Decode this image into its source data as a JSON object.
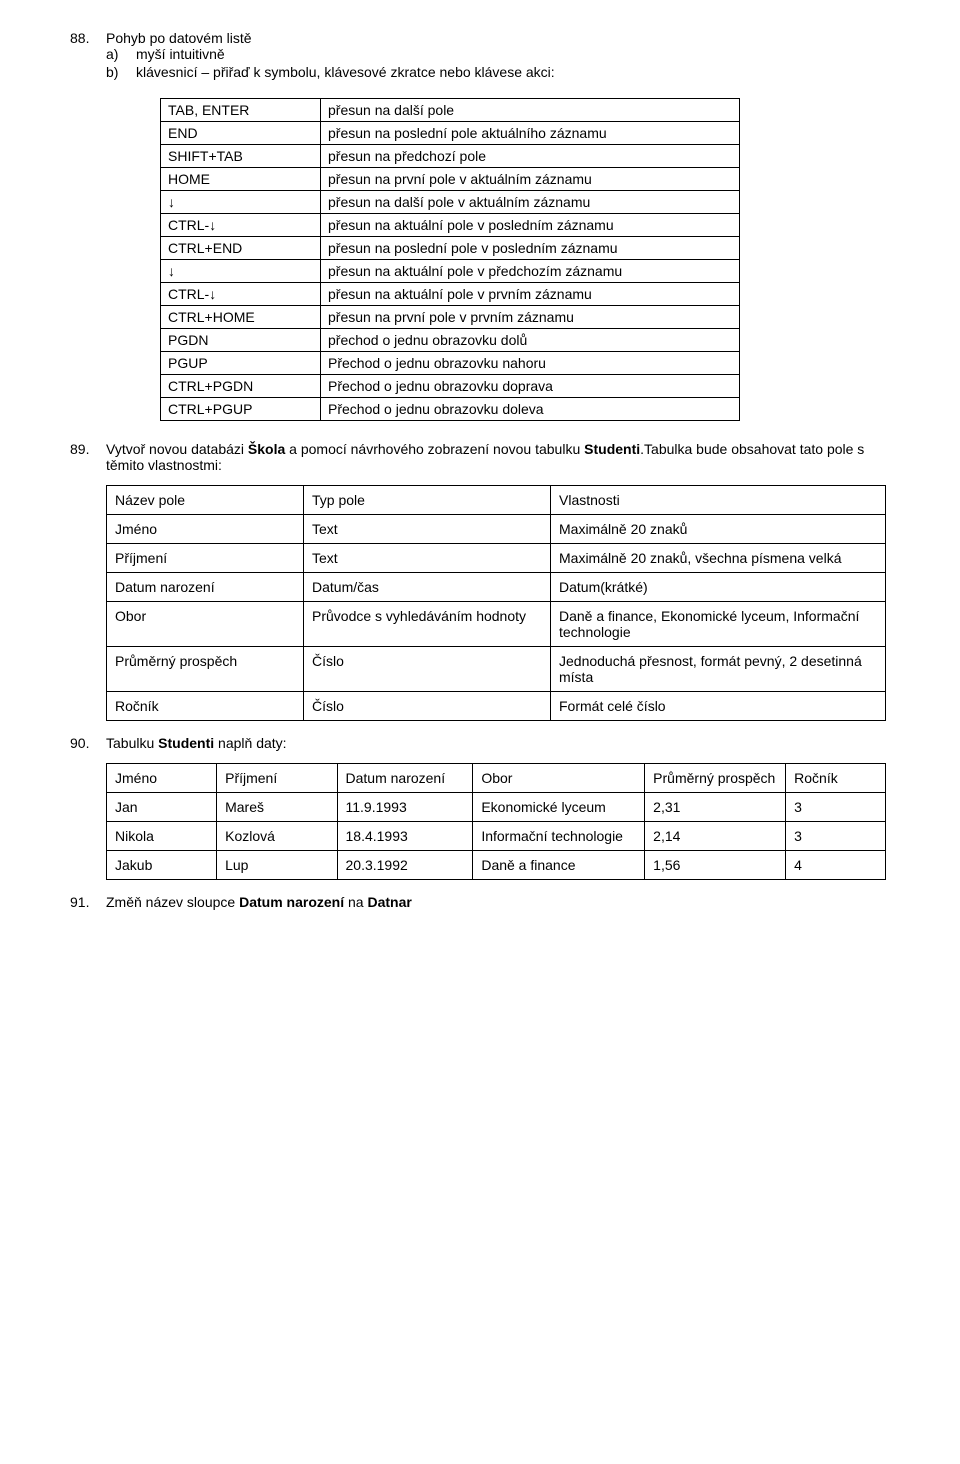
{
  "item88": {
    "num": "88.",
    "title": "Pohyb po datovém listě",
    "sub_a_letter": "a)",
    "sub_a_text": "myší intuitivně",
    "sub_b_letter": "b)",
    "sub_b_text": "klávesnicí – přiřaď k symbolu, klávesové zkratce nebo klávese akci:"
  },
  "shortcuts": [
    {
      "key": "TAB, ENTER",
      "desc": "přesun na další pole"
    },
    {
      "key": "END",
      "desc": "přesun na poslední pole aktuálního záznamu"
    },
    {
      "key": "SHIFT+TAB",
      "desc": "přesun na předchozí pole"
    },
    {
      "key": "HOME",
      "desc": "přesun na první pole v aktuálním záznamu"
    },
    {
      "key": "↓",
      "desc": "přesun na další pole v aktuálním záznamu"
    },
    {
      "key": "CTRL-↓",
      "desc": "přesun na aktuální pole v posledním záznamu"
    },
    {
      "key": "CTRL+END",
      "desc": "přesun na poslední pole v posledním záznamu"
    },
    {
      "key": "↓",
      "desc": "přesun na aktuální pole v předchozím záznamu"
    },
    {
      "key": "CTRL-↓",
      "desc": "přesun na aktuální pole v prvním záznamu"
    },
    {
      "key": "CTRL+HOME",
      "desc": "přesun na první pole v prvním záznamu"
    },
    {
      "key": "PGDN",
      "desc": "přechod o jednu obrazovku dolů"
    },
    {
      "key": "PGUP",
      "desc": "Přechod o jednu obrazovku nahoru"
    },
    {
      "key": "CTRL+PGDN",
      "desc": "Přechod o jednu obrazovku doprava"
    },
    {
      "key": "CTRL+PGUP",
      "desc": "Přechod o jednu obrazovku doleva"
    }
  ],
  "item89": {
    "num": "89.",
    "pre": "Vytvoř novou databázi ",
    "bold1": "Škola",
    "mid": " a pomocí návrhového zobrazení novou tabulku ",
    "bold2": "Studenti",
    "post": ".Tabulka bude obsahovat tato pole s těmito vlastnostmi:"
  },
  "fields_header": {
    "c1": "Název pole",
    "c2": "Typ pole",
    "c3": "Vlastnosti"
  },
  "fields": [
    {
      "c1": "Jméno",
      "c2": "Text",
      "c3": "Maximálně 20 znaků"
    },
    {
      "c1": "Příjmení",
      "c2": "Text",
      "c3": "Maximálně 20 znaků, všechna písmena velká"
    },
    {
      "c1": "Datum narození",
      "c2": "Datum/čas",
      "c3": "Datum(krátké)"
    },
    {
      "c1": "Obor",
      "c2": "Průvodce s vyhledáváním hodnoty",
      "c3": "Daně a finance, Ekonomické lyceum, Informační technologie"
    },
    {
      "c1": "Průměrný prospěch",
      "c2": "Číslo",
      "c3": "Jednoduchá přesnost, formát pevný, 2 desetinná místa"
    },
    {
      "c1": "Ročník",
      "c2": "Číslo",
      "c3": "Formát celé číslo"
    }
  ],
  "item90": {
    "num": "90.",
    "pre": "Tabulku ",
    "bold": "Studenti",
    "post": " naplň daty:"
  },
  "data_header": {
    "c1": "Jméno",
    "c2": "Příjmení",
    "c3": "Datum narození",
    "c4": "Obor",
    "c5": "Průměrný prospěch",
    "c6": "Ročník"
  },
  "data_rows": [
    {
      "c1": "Jan",
      "c2": "Mareš",
      "c3": "11.9.1993",
      "c4": "Ekonomické lyceum",
      "c5": "2,31",
      "c6": "3"
    },
    {
      "c1": "Nikola",
      "c2": "Kozlová",
      "c3": "18.4.1993",
      "c4": "Informační technologie",
      "c5": "2,14",
      "c6": "3"
    },
    {
      "c1": "Jakub",
      "c2": "Lup",
      "c3": "20.3.1992",
      "c4": "Daně a finance",
      "c5": "1,56",
      "c6": "4"
    }
  ],
  "item91": {
    "num": "91.",
    "pre": "Změň název sloupce ",
    "bold1": "Datum narození",
    "mid": " na ",
    "bold2": "Datnar"
  }
}
